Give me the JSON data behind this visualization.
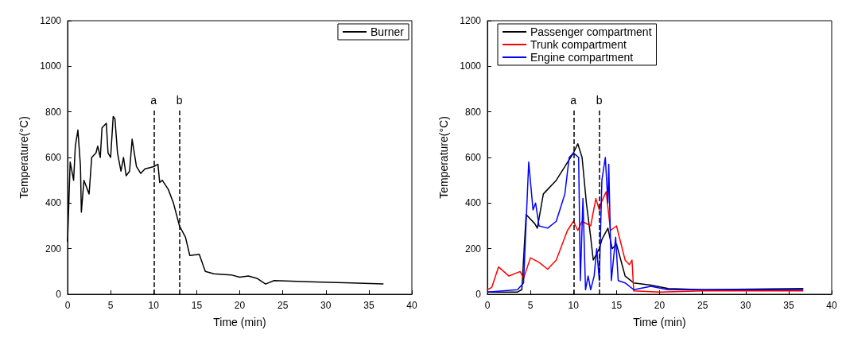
{
  "chart_data": [
    {
      "type": "line",
      "xlabel": "Time (min)",
      "ylabel": "Temperature(°C)",
      "xlim": [
        0,
        40
      ],
      "xticks": [
        0,
        5,
        10,
        15,
        20,
        25,
        30,
        35,
        40
      ],
      "ylim": [
        0,
        1200
      ],
      "yticks": [
        0,
        200,
        400,
        600,
        800,
        1000,
        1200
      ],
      "grid": false,
      "legend": "top right",
      "marker": "none",
      "line_style": "solid",
      "ref_lines": [
        {
          "axis": "x",
          "value": 10,
          "label": "a",
          "line_style": "dashed",
          "color": "#000000"
        },
        {
          "axis": "x",
          "value": 13,
          "label": "b",
          "line_style": "dashed",
          "color": "#000000"
        }
      ],
      "series": [
        {
          "name": "Burner",
          "color": "#000000",
          "x": [
            0,
            0.3,
            0.7,
            0.9,
            1.2,
            1.5,
            1.6,
            1.9,
            2.5,
            2.8,
            3.3,
            3.5,
            3.8,
            4.0,
            4.5,
            4.7,
            5.0,
            5.3,
            5.5,
            5.8,
            6.2,
            6.5,
            6.8,
            7.2,
            7.5,
            8.0,
            8.5,
            9.0,
            9.5,
            10.0,
            10.5,
            10.7,
            11,
            11.7,
            12.3,
            13,
            13.7,
            14.2,
            15.3,
            16,
            17,
            19,
            20,
            21,
            22,
            23,
            24,
            28,
            33,
            36.7
          ],
          "values": [
            230,
            580,
            500,
            650,
            720,
            560,
            360,
            500,
            440,
            600,
            620,
            650,
            600,
            730,
            750,
            620,
            600,
            780,
            770,
            620,
            540,
            600,
            520,
            540,
            680,
            560,
            530,
            550,
            555,
            560,
            570,
            490,
            500,
            460,
            400,
            300,
            250,
            170,
            175,
            100,
            90,
            85,
            75,
            80,
            70,
            45,
            60,
            55,
            50,
            45
          ]
        }
      ]
    },
    {
      "type": "line",
      "xlabel": "Time (min)",
      "ylabel": "Temperature(°C)",
      "xlim": [
        0,
        40
      ],
      "xticks": [
        0,
        5,
        10,
        15,
        20,
        25,
        30,
        35,
        40
      ],
      "ylim": [
        0,
        1200
      ],
      "yticks": [
        0,
        200,
        400,
        600,
        800,
        1000,
        1200
      ],
      "grid": false,
      "legend": "top left",
      "marker": "none",
      "line_style": "solid",
      "ref_lines": [
        {
          "axis": "x",
          "value": 10,
          "label": "a",
          "line_style": "dashed",
          "color": "#000000"
        },
        {
          "axis": "x",
          "value": 13,
          "label": "b",
          "line_style": "dashed",
          "color": "#000000"
        }
      ],
      "series": [
        {
          "name": "Passenger compartment",
          "color": "#000000",
          "x": [
            0,
            3.5,
            4,
            4.5,
            5.5,
            5.8,
            6.5,
            7,
            8,
            9,
            10,
            10.5,
            11,
            11.5,
            12,
            12.3,
            13,
            13.3,
            14,
            14.5,
            15,
            15.5,
            16,
            17,
            19,
            21,
            25,
            36.7
          ],
          "values": [
            10,
            10,
            20,
            350,
            310,
            290,
            440,
            460,
            500,
            560,
            620,
            660,
            600,
            400,
            250,
            150,
            200,
            240,
            290,
            200,
            220,
            150,
            80,
            50,
            40,
            25,
            20,
            25
          ]
        },
        {
          "name": "Trunk compartment",
          "color": "#ff0000",
          "x": [
            0,
            0.5,
            1.3,
            2.5,
            3.8,
            4.2,
            5,
            6,
            7,
            8,
            9.3,
            10,
            10.5,
            11,
            12,
            12.6,
            13,
            13.2,
            13.8,
            14.3,
            15,
            16,
            16.5,
            16.8,
            17,
            20,
            25,
            36.7
          ],
          "values": [
            20,
            30,
            120,
            80,
            100,
            70,
            160,
            140,
            110,
            150,
            280,
            320,
            280,
            320,
            300,
            420,
            370,
            400,
            450,
            280,
            300,
            150,
            130,
            150,
            15,
            10,
            15,
            15
          ]
        },
        {
          "name": "Engine compartment",
          "color": "#0000ff",
          "x": [
            0,
            3.5,
            4.2,
            4.8,
            5.3,
            5.6,
            6,
            7,
            8,
            9,
            9.5,
            10,
            10.3,
            10.6,
            10.8,
            11.1,
            11.4,
            11.7,
            12,
            12.4,
            12.7,
            13,
            13.3,
            13.7,
            14,
            14.1,
            14.4,
            14.9,
            15.2,
            16,
            17,
            19,
            21,
            36.7
          ],
          "values": [
            10,
            20,
            50,
            580,
            370,
            400,
            300,
            290,
            320,
            440,
            600,
            620,
            610,
            600,
            60,
            420,
            20,
            80,
            20,
            80,
            200,
            60,
            500,
            600,
            400,
            570,
            60,
            250,
            60,
            50,
            20,
            35,
            20,
            20
          ]
        }
      ]
    }
  ]
}
